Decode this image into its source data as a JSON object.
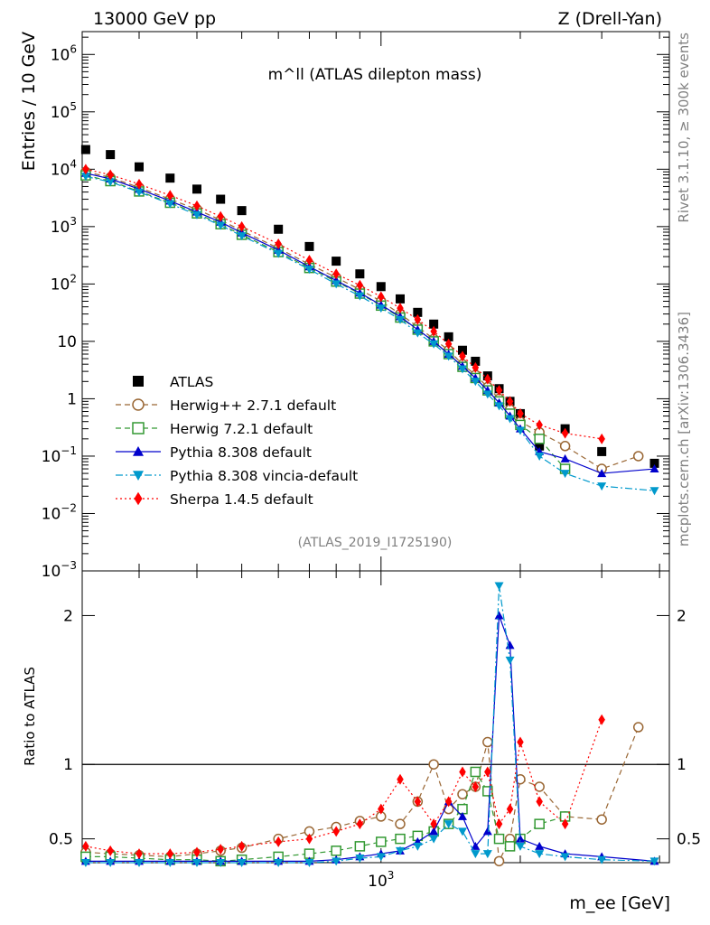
{
  "header": {
    "left": "13000 GeV pp",
    "right": "Z (Drell-Yan)"
  },
  "side": {
    "top": "Rivet 3.1.10, ≥ 300k events",
    "bottom": "mcplots.cern.ch [arXiv:1306.3436]"
  },
  "chart_data": {
    "type": "scatter",
    "title": "m^ll (ATLAS dilepton mass)",
    "analysis_label": "(ATLAS_2019_I1725190)",
    "xlabel": "m_ee [GeV]",
    "ylabel": "Entries / 10 GeV",
    "ratio_ylabel": "Ratio to ATLAS",
    "xscale": "log",
    "yscale": "log",
    "xlim": [
      226,
      4200
    ],
    "ylim": [
      0.001,
      2500000
    ],
    "ratio_ylim": [
      0.34,
      2.3
    ],
    "ratio_ticks": [
      "0.5",
      "1",
      "2"
    ],
    "ratio_tick_values": [
      0.5,
      1,
      2
    ],
    "y_ticks": [
      "10^-3",
      "10^-2",
      "10^-1",
      "1",
      "10",
      "10^2",
      "10^3",
      "10^4",
      "10^5",
      "10^6"
    ],
    "y_tick_values": [
      0.001,
      0.01,
      0.1,
      1,
      10,
      100,
      1000,
      10000,
      100000,
      1000000
    ],
    "x_ticks": [
      "10^3"
    ],
    "x_tick_values": [
      1000
    ],
    "legend_position": "lower-left",
    "series": [
      {
        "name": "ATLAS",
        "color": "#000000",
        "marker": "square-filled",
        "line": "none",
        "x": [
          230,
          260,
          300,
          350,
          400,
          450,
          500,
          600,
          700,
          800,
          900,
          1000,
          1100,
          1200,
          1300,
          1400,
          1500,
          1600,
          1700,
          1800,
          1900,
          2000,
          2200,
          2500,
          3000,
          3900
        ],
        "y": [
          22000,
          18000,
          11000,
          7000,
          4500,
          3000,
          1900,
          900,
          450,
          250,
          150,
          90,
          55,
          32,
          20,
          12,
          7,
          4.5,
          2.5,
          1.5,
          0.9,
          0.55,
          0.15,
          0.3,
          0.12,
          0.075
        ]
      },
      {
        "name": "Herwig++ 2.7.1 default",
        "color": "#996633",
        "marker": "circle-open",
        "line": "dashed",
        "x": [
          230,
          260,
          300,
          350,
          400,
          450,
          500,
          600,
          700,
          800,
          900,
          1000,
          1100,
          1200,
          1300,
          1400,
          1500,
          1600,
          1700,
          1800,
          1900,
          2000,
          2200,
          2500,
          3000,
          3600
        ],
        "y": [
          9000,
          7200,
          4800,
          3000,
          2000,
          1300,
          850,
          420,
          220,
          130,
          80,
          50,
          30,
          18,
          11,
          7,
          4,
          2.6,
          1.6,
          1.0,
          0.65,
          0.4,
          0.26,
          0.15,
          0.06,
          0.1
        ],
        "ratio": [
          0.41,
          0.4,
          0.39,
          0.38,
          0.4,
          0.42,
          0.44,
          0.5,
          0.55,
          0.58,
          0.62,
          0.65,
          0.6,
          0.75,
          1.0,
          0.7,
          0.8,
          0.85,
          1.15,
          0.35,
          0.5,
          0.9,
          0.85,
          0.65,
          0.63,
          1.25
        ]
      },
      {
        "name": "Herwig 7.2.1 default",
        "color": "#339933",
        "marker": "square-open",
        "line": "dashed",
        "x": [
          230,
          260,
          300,
          350,
          400,
          450,
          500,
          600,
          700,
          800,
          900,
          1000,
          1100,
          1200,
          1300,
          1400,
          1500,
          1600,
          1700,
          1800,
          1900,
          2000,
          2200,
          2500
        ],
        "y": [
          7800,
          6200,
          4100,
          2600,
          1700,
          1100,
          720,
          360,
          190,
          110,
          68,
          42,
          26,
          16,
          10,
          6,
          3.6,
          2.3,
          1.4,
          0.9,
          0.55,
          0.35,
          0.2,
          0.06
        ],
        "ratio": [
          0.38,
          0.38,
          0.37,
          0.36,
          0.36,
          0.35,
          0.36,
          0.38,
          0.4,
          0.42,
          0.45,
          0.48,
          0.5,
          0.52,
          0.55,
          0.6,
          0.7,
          0.95,
          0.82,
          0.5,
          0.45,
          0.5,
          0.6,
          0.65
        ]
      },
      {
        "name": "Pythia 8.308 default",
        "color": "#0000cc",
        "marker": "triangle-up-filled",
        "line": "solid",
        "x": [
          230,
          260,
          300,
          350,
          400,
          450,
          500,
          600,
          700,
          800,
          900,
          1000,
          1100,
          1200,
          1300,
          1400,
          1500,
          1600,
          1700,
          1800,
          1900,
          2000,
          2200,
          2500,
          3000,
          3900
        ],
        "y": [
          8500,
          6800,
          4500,
          2800,
          1800,
          1200,
          780,
          390,
          200,
          115,
          70,
          43,
          27,
          16,
          10,
          6,
          3.7,
          2.3,
          1.4,
          0.85,
          0.5,
          0.3,
          0.12,
          0.09,
          0.05,
          0.06
        ],
        "ratio": [
          0.35,
          0.35,
          0.35,
          0.35,
          0.35,
          0.35,
          0.35,
          0.35,
          0.35,
          0.36,
          0.38,
          0.4,
          0.42,
          0.48,
          0.55,
          0.75,
          0.65,
          0.45,
          0.55,
          2.0,
          1.8,
          0.5,
          0.45,
          0.4,
          0.38,
          0.35
        ]
      },
      {
        "name": "Pythia 8.308 vincia-default",
        "color": "#0099cc",
        "marker": "triangle-down-filled",
        "line": "dashdot",
        "x": [
          230,
          260,
          300,
          350,
          400,
          450,
          500,
          600,
          700,
          800,
          900,
          1000,
          1100,
          1200,
          1300,
          1400,
          1500,
          1600,
          1700,
          1800,
          1900,
          2000,
          2200,
          2500,
          3000,
          3900
        ],
        "y": [
          7500,
          6000,
          4000,
          2500,
          1600,
          1050,
          690,
          340,
          180,
          100,
          62,
          38,
          24,
          14,
          9,
          5.5,
          3.3,
          2.0,
          1.2,
          0.75,
          0.45,
          0.28,
          0.1,
          0.05,
          0.03,
          0.025
        ],
        "ratio": [
          0.34,
          0.34,
          0.34,
          0.34,
          0.34,
          0.34,
          0.34,
          0.34,
          0.34,
          0.35,
          0.37,
          0.38,
          0.42,
          0.45,
          0.5,
          0.6,
          0.55,
          0.4,
          0.4,
          2.2,
          1.7,
          0.45,
          0.4,
          0.38,
          0.36,
          0.35
        ]
      },
      {
        "name": "Sherpa 1.4.5 default",
        "color": "#ff0000",
        "marker": "diamond-filled",
        "line": "dotted",
        "x": [
          230,
          260,
          300,
          350,
          400,
          450,
          500,
          600,
          700,
          800,
          900,
          1000,
          1100,
          1200,
          1300,
          1400,
          1500,
          1600,
          1700,
          1800,
          1900,
          2000,
          2200,
          2500,
          3000
        ],
        "y": [
          10000,
          8000,
          5500,
          3500,
          2300,
          1500,
          1000,
          500,
          260,
          150,
          95,
          60,
          38,
          24,
          15,
          9,
          5.5,
          3.5,
          2.2,
          1.4,
          0.9,
          0.55,
          0.35,
          0.25,
          0.2
        ],
        "ratio": [
          0.45,
          0.42,
          0.4,
          0.4,
          0.41,
          0.43,
          0.45,
          0.48,
          0.5,
          0.55,
          0.6,
          0.7,
          0.9,
          0.75,
          0.6,
          0.75,
          0.95,
          0.85,
          0.95,
          0.6,
          0.7,
          1.15,
          0.75,
          0.6,
          1.3
        ]
      }
    ]
  }
}
